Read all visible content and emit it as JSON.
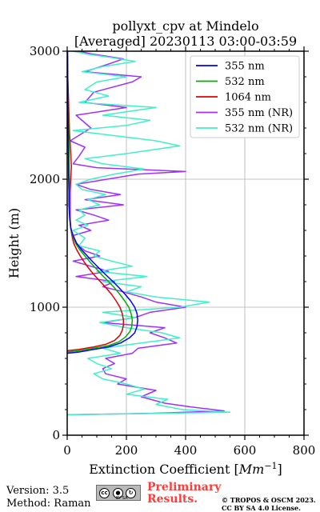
{
  "chart_data": {
    "type": "line",
    "title_line1": "pollyxt_cpv at Mindelo",
    "title_line2": "[Averaged] 20230113 03:00-03:59",
    "xlabel": "Extinction Coefficient [Mm⁻¹]",
    "xlabel_main": "Extinction Coefficient ",
    "xlabel_unit": "Mm",
    "xlabel_exp": "−1",
    "ylabel": "Height (m)",
    "xlim": [
      0,
      800
    ],
    "ylim": [
      0,
      3000
    ],
    "xticks": [
      "0",
      "200",
      "400",
      "600",
      "800"
    ],
    "yticks": [
      "0",
      "1000",
      "2000",
      "3000"
    ],
    "grid": true,
    "legend_position": "top-right",
    "series": [
      {
        "name": "355 nm",
        "color": "#0000ff",
        "points": [
          [
            0,
            640
          ],
          [
            40,
            650
          ],
          [
            90,
            670
          ],
          [
            140,
            690
          ],
          [
            180,
            720
          ],
          [
            210,
            760
          ],
          [
            228,
            800
          ],
          [
            236,
            850
          ],
          [
            238,
            900
          ],
          [
            236,
            950
          ],
          [
            228,
            1000
          ],
          [
            214,
            1050
          ],
          [
            196,
            1100
          ],
          [
            176,
            1150
          ],
          [
            155,
            1200
          ],
          [
            132,
            1250
          ],
          [
            110,
            1300
          ],
          [
            88,
            1350
          ],
          [
            68,
            1400
          ],
          [
            48,
            1450
          ],
          [
            32,
            1500
          ],
          [
            20,
            1560
          ],
          [
            12,
            1620
          ],
          [
            8,
            1700
          ],
          [
            6,
            1800
          ],
          [
            6,
            1900
          ],
          [
            5,
            2000
          ],
          [
            4,
            2200
          ],
          [
            3,
            2500
          ],
          [
            2,
            2800
          ],
          [
            1,
            3000
          ]
        ]
      },
      {
        "name": "532 nm",
        "color": "#00b000",
        "points": [
          [
            0,
            650
          ],
          [
            40,
            660
          ],
          [
            90,
            680
          ],
          [
            140,
            700
          ],
          [
            175,
            730
          ],
          [
            198,
            770
          ],
          [
            212,
            810
          ],
          [
            218,
            850
          ],
          [
            220,
            900
          ],
          [
            216,
            950
          ],
          [
            208,
            1000
          ],
          [
            194,
            1050
          ],
          [
            178,
            1100
          ],
          [
            160,
            1150
          ],
          [
            140,
            1200
          ],
          [
            118,
            1250
          ],
          [
            98,
            1300
          ],
          [
            78,
            1350
          ],
          [
            60,
            1400
          ],
          [
            42,
            1450
          ],
          [
            28,
            1500
          ],
          [
            18,
            1560
          ],
          [
            12,
            1620
          ],
          [
            9,
            1700
          ],
          [
            8,
            1800
          ],
          [
            8,
            1900
          ],
          [
            7,
            2000
          ],
          [
            6,
            2200
          ],
          [
            4,
            2500
          ],
          [
            2,
            2800
          ],
          [
            1,
            3000
          ]
        ]
      },
      {
        "name": "1064 nm",
        "color": "#e00000",
        "points": [
          [
            0,
            660
          ],
          [
            40,
            670
          ],
          [
            90,
            690
          ],
          [
            130,
            710
          ],
          [
            160,
            740
          ],
          [
            178,
            780
          ],
          [
            186,
            820
          ],
          [
            190,
            860
          ],
          [
            190,
            900
          ],
          [
            186,
            950
          ],
          [
            178,
            1000
          ],
          [
            165,
            1050
          ],
          [
            150,
            1100
          ],
          [
            132,
            1150
          ],
          [
            112,
            1200
          ],
          [
            92,
            1250
          ],
          [
            74,
            1300
          ],
          [
            58,
            1350
          ],
          [
            44,
            1400
          ],
          [
            32,
            1450
          ],
          [
            22,
            1500
          ],
          [
            16,
            1560
          ],
          [
            12,
            1620
          ],
          [
            10,
            1700
          ],
          [
            10,
            1800
          ],
          [
            10,
            1900
          ],
          [
            12,
            2000
          ],
          [
            14,
            2100
          ],
          [
            12,
            2200
          ],
          [
            8,
            2350
          ],
          [
            6,
            2500
          ],
          [
            4,
            2650
          ],
          [
            2,
            2800
          ],
          [
            1,
            3000
          ]
        ]
      },
      {
        "name": "355 nm (NR)",
        "color": "#a030ff",
        "points": [
          [
            0,
            160
          ],
          [
            280,
            170
          ],
          [
            530,
            190
          ],
          [
            420,
            220
          ],
          [
            330,
            250
          ],
          [
            250,
            300
          ],
          [
            300,
            350
          ],
          [
            170,
            400
          ],
          [
            200,
            440
          ],
          [
            130,
            480
          ],
          [
            120,
            520
          ],
          [
            160,
            560
          ],
          [
            130,
            600
          ],
          [
            220,
            640
          ],
          [
            240,
            680
          ],
          [
            370,
            720
          ],
          [
            330,
            760
          ],
          [
            280,
            800
          ],
          [
            330,
            840
          ],
          [
            120,
            880
          ],
          [
            230,
            920
          ],
          [
            280,
            960
          ],
          [
            400,
            1000
          ],
          [
            300,
            1040
          ],
          [
            250,
            1080
          ],
          [
            190,
            1120
          ],
          [
            120,
            1160
          ],
          [
            160,
            1200
          ],
          [
            30,
            1240
          ],
          [
            140,
            1280
          ],
          [
            80,
            1320
          ],
          [
            20,
            1360
          ],
          [
            110,
            1400
          ],
          [
            60,
            1440
          ],
          [
            30,
            1500
          ],
          [
            20,
            1560
          ],
          [
            80,
            1600
          ],
          [
            40,
            1640
          ],
          [
            140,
            1680
          ],
          [
            90,
            1720
          ],
          [
            30,
            1760
          ],
          [
            190,
            1800
          ],
          [
            60,
            1840
          ],
          [
            180,
            1880
          ],
          [
            80,
            1920
          ],
          [
            30,
            1960
          ],
          [
            240,
            2040
          ],
          [
            400,
            2060
          ],
          [
            100,
            2090
          ],
          [
            20,
            2120
          ],
          [
            40,
            2180
          ],
          [
            60,
            2250
          ],
          [
            10,
            2300
          ],
          [
            80,
            2400
          ],
          [
            30,
            2500
          ],
          [
            200,
            2560
          ],
          [
            60,
            2600
          ],
          [
            90,
            2680
          ],
          [
            220,
            2760
          ],
          [
            250,
            2800
          ],
          [
            60,
            2840
          ],
          [
            140,
            2900
          ],
          [
            190,
            2940
          ],
          [
            80,
            2980
          ],
          [
            40,
            3000
          ]
        ]
      },
      {
        "name": "532 nm (NR)",
        "color": "#40f0c8",
        "points": [
          [
            0,
            160
          ],
          [
            300,
            170
          ],
          [
            550,
            180
          ],
          [
            390,
            200
          ],
          [
            300,
            240
          ],
          [
            340,
            280
          ],
          [
            200,
            320
          ],
          [
            260,
            360
          ],
          [
            200,
            400
          ],
          [
            120,
            440
          ],
          [
            90,
            480
          ],
          [
            150,
            520
          ],
          [
            100,
            560
          ],
          [
            70,
            600
          ],
          [
            180,
            640
          ],
          [
            120,
            680
          ],
          [
            250,
            720
          ],
          [
            380,
            760
          ],
          [
            320,
            800
          ],
          [
            200,
            840
          ],
          [
            110,
            880
          ],
          [
            230,
            920
          ],
          [
            120,
            960
          ],
          [
            380,
            1000
          ],
          [
            480,
            1040
          ],
          [
            300,
            1080
          ],
          [
            200,
            1120
          ],
          [
            250,
            1160
          ],
          [
            120,
            1200
          ],
          [
            270,
            1240
          ],
          [
            100,
            1280
          ],
          [
            220,
            1320
          ],
          [
            150,
            1360
          ],
          [
            90,
            1400
          ],
          [
            110,
            1440
          ],
          [
            40,
            1480
          ],
          [
            60,
            1540
          ],
          [
            20,
            1600
          ],
          [
            70,
            1640
          ],
          [
            30,
            1680
          ],
          [
            60,
            1720
          ],
          [
            40,
            1760
          ],
          [
            110,
            1800
          ],
          [
            70,
            1840
          ],
          [
            130,
            1880
          ],
          [
            50,
            1920
          ],
          [
            30,
            1960
          ],
          [
            80,
            2000
          ],
          [
            160,
            2040
          ],
          [
            260,
            2080
          ],
          [
            120,
            2120
          ],
          [
            60,
            2160
          ],
          [
            200,
            2200
          ],
          [
            380,
            2260
          ],
          [
            300,
            2300
          ],
          [
            160,
            2340
          ],
          [
            20,
            2380
          ],
          [
            200,
            2420
          ],
          [
            280,
            2460
          ],
          [
            120,
            2500
          ],
          [
            300,
            2560
          ],
          [
            40,
            2600
          ],
          [
            140,
            2650
          ],
          [
            60,
            2700
          ],
          [
            100,
            2760
          ],
          [
            200,
            2800
          ],
          [
            50,
            2840
          ],
          [
            120,
            2880
          ],
          [
            230,
            2920
          ],
          [
            150,
            2950
          ],
          [
            60,
            2980
          ],
          [
            20,
            3000
          ]
        ]
      }
    ]
  },
  "footer": {
    "version": "Version: 3.5",
    "method": "Method: Raman",
    "license_icons": [
      "cc-icon",
      "by-icon",
      "sa-icon"
    ],
    "license_sub": "BY SA",
    "preliminary_line1": "Preliminary",
    "preliminary_line2": "Results.",
    "preliminary_color": "#ff3b3b",
    "copyright_line1": "© TROPOS & OSCM 2023.",
    "copyright_line2": "CC BY SA 4.0 License."
  }
}
